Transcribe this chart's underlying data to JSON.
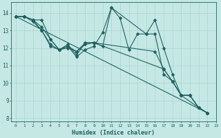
{
  "xlabel": "Humidex (Indice chaleur)",
  "background_color": "#c5e8e5",
  "grid_color": "#aad4d0",
  "line_color": "#206060",
  "xlim": [
    -0.5,
    23
  ],
  "ylim": [
    7.8,
    14.6
  ],
  "yticks": [
    8,
    9,
    10,
    11,
    12,
    13,
    14
  ],
  "xticks": [
    0,
    1,
    2,
    3,
    4,
    5,
    6,
    7,
    8,
    9,
    10,
    11,
    12,
    13,
    14,
    15,
    16,
    17,
    18,
    19,
    20,
    21,
    22,
    23
  ],
  "series": [
    {
      "x": [
        0,
        1,
        2,
        3,
        4,
        5,
        6,
        7,
        8,
        9,
        10,
        11,
        12,
        13,
        14,
        15,
        16,
        17,
        18,
        19,
        20,
        21,
        22
      ],
      "y": [
        13.8,
        13.8,
        13.6,
        13.6,
        12.5,
        11.9,
        12.2,
        11.6,
        12.3,
        12.3,
        12.1,
        14.3,
        13.7,
        11.9,
        12.8,
        12.8,
        13.6,
        12.0,
        10.5,
        9.3,
        9.3,
        8.6,
        8.3
      ]
    },
    {
      "x": [
        0,
        1,
        2,
        3,
        4,
        5,
        6,
        7,
        8,
        9,
        10,
        11,
        15,
        16,
        17,
        18,
        19,
        21,
        22
      ],
      "y": [
        13.8,
        13.8,
        13.6,
        13.2,
        12.5,
        11.9,
        12.1,
        11.5,
        11.9,
        12.1,
        12.9,
        14.3,
        12.8,
        12.8,
        10.5,
        10.1,
        9.3,
        8.6,
        8.3
      ]
    },
    {
      "x": [
        0,
        1,
        2,
        3,
        4,
        5,
        6,
        7,
        8,
        9,
        16,
        17,
        18,
        19,
        20,
        21,
        22
      ],
      "y": [
        13.8,
        13.8,
        13.6,
        13.0,
        12.2,
        11.9,
        12.1,
        11.8,
        12.3,
        12.3,
        11.8,
        10.8,
        10.1,
        9.3,
        9.3,
        8.6,
        8.3
      ]
    },
    {
      "x": [
        0,
        1,
        2,
        3,
        4,
        5,
        6,
        7,
        8,
        9,
        17,
        18,
        19,
        20,
        21,
        22
      ],
      "y": [
        13.8,
        13.8,
        13.5,
        13.0,
        12.1,
        11.9,
        12.0,
        11.8,
        12.2,
        12.3,
        10.8,
        10.1,
        9.3,
        9.3,
        8.6,
        8.3
      ]
    }
  ],
  "regression": {
    "x": [
      0,
      22
    ],
    "y": [
      13.8,
      8.3
    ]
  },
  "marker": "D",
  "markersize": 2.5,
  "linewidth": 0.8
}
